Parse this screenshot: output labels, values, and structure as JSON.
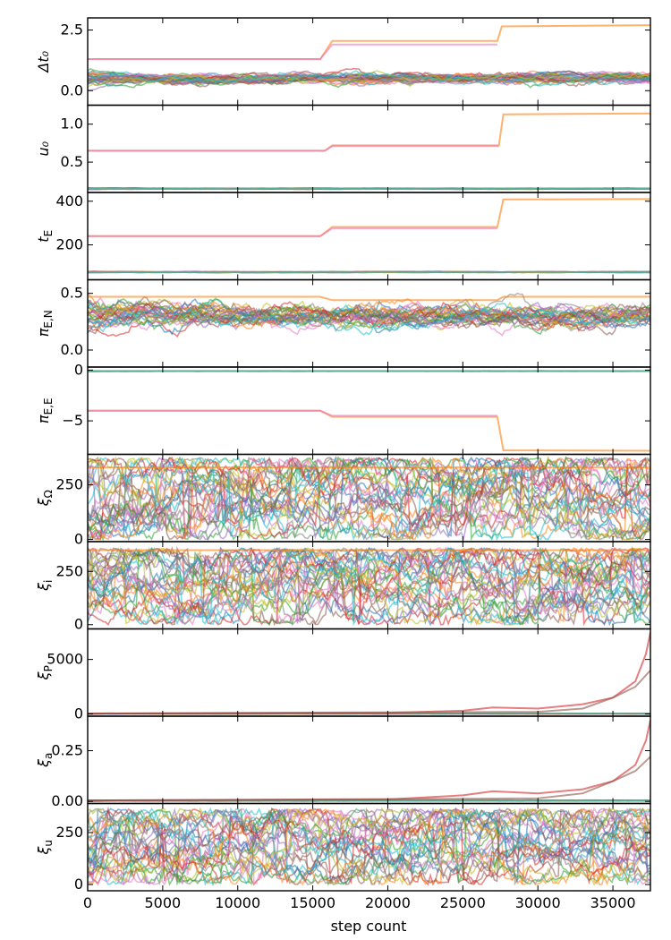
{
  "chart_data": {
    "type": "line",
    "description_free": true,
    "xlabel": "step count",
    "xlim": [
      0,
      37500
    ],
    "xticks": [
      0,
      5000,
      10000,
      15000,
      20000,
      25000,
      30000,
      35000
    ],
    "xtick_labels": [
      "0",
      "5000",
      "10000",
      "15000",
      "20000",
      "25000",
      "30000",
      "35000"
    ],
    "walker_colors": [
      "#1f77b4",
      "#ff7f0e",
      "#2ca02c",
      "#d62728",
      "#9467bd",
      "#8c564b",
      "#e377c2",
      "#7f7f7f",
      "#bcbd22",
      "#17becf"
    ],
    "panels": [
      {
        "ylabel": "Δt₀",
        "ylim": [
          -0.6,
          3.0
        ],
        "yticks": [
          0,
          2.5
        ],
        "ytick_labels": [
          "0.0",
          "2.5"
        ],
        "outlier_series": [
          {
            "color": "#ff7f0e",
            "x": [
              0,
              15500,
              16300,
              27300,
              27600,
              37500
            ],
            "y": [
              1.3,
              1.3,
              2.05,
              2.05,
              2.65,
              2.7
            ]
          },
          {
            "color": "#e377c2",
            "x": [
              0,
              15500,
              16300,
              27300
            ],
            "y": [
              1.3,
              1.3,
              1.9,
              1.9
            ]
          }
        ],
        "bulk": {
          "center": 0.5,
          "spread": 0.35,
          "n_walkers": 30
        }
      },
      {
        "ylabel": "u₀",
        "ylim": [
          0.1,
          1.25
        ],
        "yticks": [
          0.5,
          1.0
        ],
        "ytick_labels": [
          "0.5",
          "1.0"
        ],
        "outlier_series": [
          {
            "color": "#ff7f0e",
            "x": [
              0,
              15800,
              16300,
              27400,
              27700,
              37500
            ],
            "y": [
              0.65,
              0.65,
              0.72,
              0.72,
              1.13,
              1.14
            ]
          },
          {
            "color": "#e377c2",
            "x": [
              0,
              15800,
              16300,
              27400
            ],
            "y": [
              0.65,
              0.65,
              0.71,
              0.71
            ]
          }
        ],
        "bulk": {
          "center": 0.15,
          "spread": 0.01,
          "n_walkers": 30
        }
      },
      {
        "ylabel": "t_E",
        "ylim": [
          40,
          440
        ],
        "yticks": [
          200,
          400
        ],
        "ytick_labels": [
          "200",
          "400"
        ],
        "outlier_series": [
          {
            "color": "#ff7f0e",
            "x": [
              0,
              15500,
              16300,
              27300,
              27700,
              37500
            ],
            "y": [
              240,
              240,
              282,
              282,
              408,
              410
            ]
          },
          {
            "color": "#e377c2",
            "x": [
              0,
              15500,
              16300,
              27300
            ],
            "y": [
              240,
              240,
              275,
              275
            ]
          }
        ],
        "bulk": {
          "center": 75,
          "spread": 3,
          "n_walkers": 30
        }
      },
      {
        "ylabel": "π_E,N",
        "ylim": [
          -0.15,
          0.62
        ],
        "yticks": [
          0.0,
          0.5
        ],
        "ytick_labels": [
          "0.0",
          "0.5"
        ],
        "outlier_series": [
          {
            "color": "#ff7f0e",
            "x": [
              0,
              15500,
              16300,
              27300,
              27700,
              37500
            ],
            "y": [
              0.47,
              0.47,
              0.44,
              0.44,
              0.47,
              0.47
            ]
          }
        ],
        "bulk": {
          "center": 0.3,
          "spread": 0.17,
          "n_walkers": 30
        }
      },
      {
        "ylabel": "π_E,E",
        "ylim": [
          -8.3,
          0.3
        ],
        "yticks": [
          0,
          -5
        ],
        "ytick_labels": [
          "0",
          "−5"
        ],
        "outlier_series": [
          {
            "color": "#ff7f0e",
            "x": [
              0,
              15500,
              16300,
              27300,
              27700,
              37500
            ],
            "y": [
              -4.0,
              -4.0,
              -4.6,
              -4.6,
              -7.9,
              -7.95
            ]
          },
          {
            "color": "#e377c2",
            "x": [
              0,
              15500,
              16300,
              27300
            ],
            "y": [
              -4.0,
              -4.0,
              -4.5,
              -4.5
            ]
          }
        ],
        "bulk": {
          "center": -0.1,
          "spread": 0.03,
          "n_walkers": 30
        }
      },
      {
        "ylabel": "ξ_Ω",
        "ylim": [
          -10,
          390
        ],
        "yticks": [
          0,
          250
        ],
        "ytick_labels": [
          "0",
          "250"
        ],
        "outlier_series": [
          {
            "color": "#ff7f0e",
            "x": [
              0,
              37500
            ],
            "y": [
              330,
              330
            ]
          }
        ],
        "bulk": {
          "center": 180,
          "spread": 190,
          "n_walkers": 30,
          "uniform": [
            0,
            375
          ]
        }
      },
      {
        "ylabel": "ξ_i",
        "ylim": [
          -20,
          390
        ],
        "yticks": [
          0,
          250
        ],
        "ytick_labels": [
          "0",
          "250"
        ],
        "outlier_series": [
          {
            "color": "#ff7f0e",
            "x": [
              0,
              37500
            ],
            "y": [
              350,
              350
            ]
          }
        ],
        "bulk": {
          "center": 180,
          "spread": 190,
          "n_walkers": 30,
          "uniform": [
            0,
            360
          ]
        }
      },
      {
        "ylabel": "ξ_P",
        "ylim": [
          -200,
          7800
        ],
        "yticks": [
          0,
          5000
        ],
        "ytick_labels": [
          "0",
          "5000"
        ],
        "outlier_series": [
          {
            "color": "#d62728",
            "x": [
              0,
              20000,
              25000,
              27000,
              30000,
              33000,
              35000,
              36500,
              37200,
              37500
            ],
            "y": [
              50,
              100,
              300,
              600,
              500,
              900,
              1500,
              3000,
              5500,
              7500
            ]
          },
          {
            "color": "#8c564b",
            "x": [
              0,
              30000,
              33000,
              35000,
              36500,
              37500
            ],
            "y": [
              50,
              200,
              500,
              1500,
              2500,
              4000
            ]
          }
        ],
        "bulk": {
          "center": 30,
          "spread": 20,
          "n_walkers": 30
        }
      },
      {
        "ylabel": "ξ_a",
        "ylim": [
          -0.01,
          0.42
        ],
        "yticks": [
          0.0,
          0.25
        ],
        "ytick_labels": [
          "0.00",
          "0.25"
        ],
        "outlier_series": [
          {
            "color": "#d62728",
            "x": [
              0,
              20000,
              25000,
              27000,
              30000,
              33000,
              35000,
              36500,
              37200,
              37500
            ],
            "y": [
              0.005,
              0.01,
              0.03,
              0.05,
              0.04,
              0.06,
              0.1,
              0.18,
              0.3,
              0.4
            ]
          },
          {
            "color": "#8c564b",
            "x": [
              0,
              30000,
              33000,
              35000,
              36500,
              37500
            ],
            "y": [
              0.005,
              0.015,
              0.04,
              0.1,
              0.15,
              0.22
            ]
          }
        ],
        "bulk": {
          "center": 0.004,
          "spread": 0.003,
          "n_walkers": 30
        }
      },
      {
        "ylabel": "ξ_u",
        "ylim": [
          -30,
          390
        ],
        "yticks": [
          0,
          250
        ],
        "ytick_labels": [
          "0",
          "250"
        ],
        "outlier_series": [],
        "bulk": {
          "center": 180,
          "spread": 190,
          "n_walkers": 30,
          "uniform": [
            0,
            365
          ]
        }
      }
    ]
  }
}
